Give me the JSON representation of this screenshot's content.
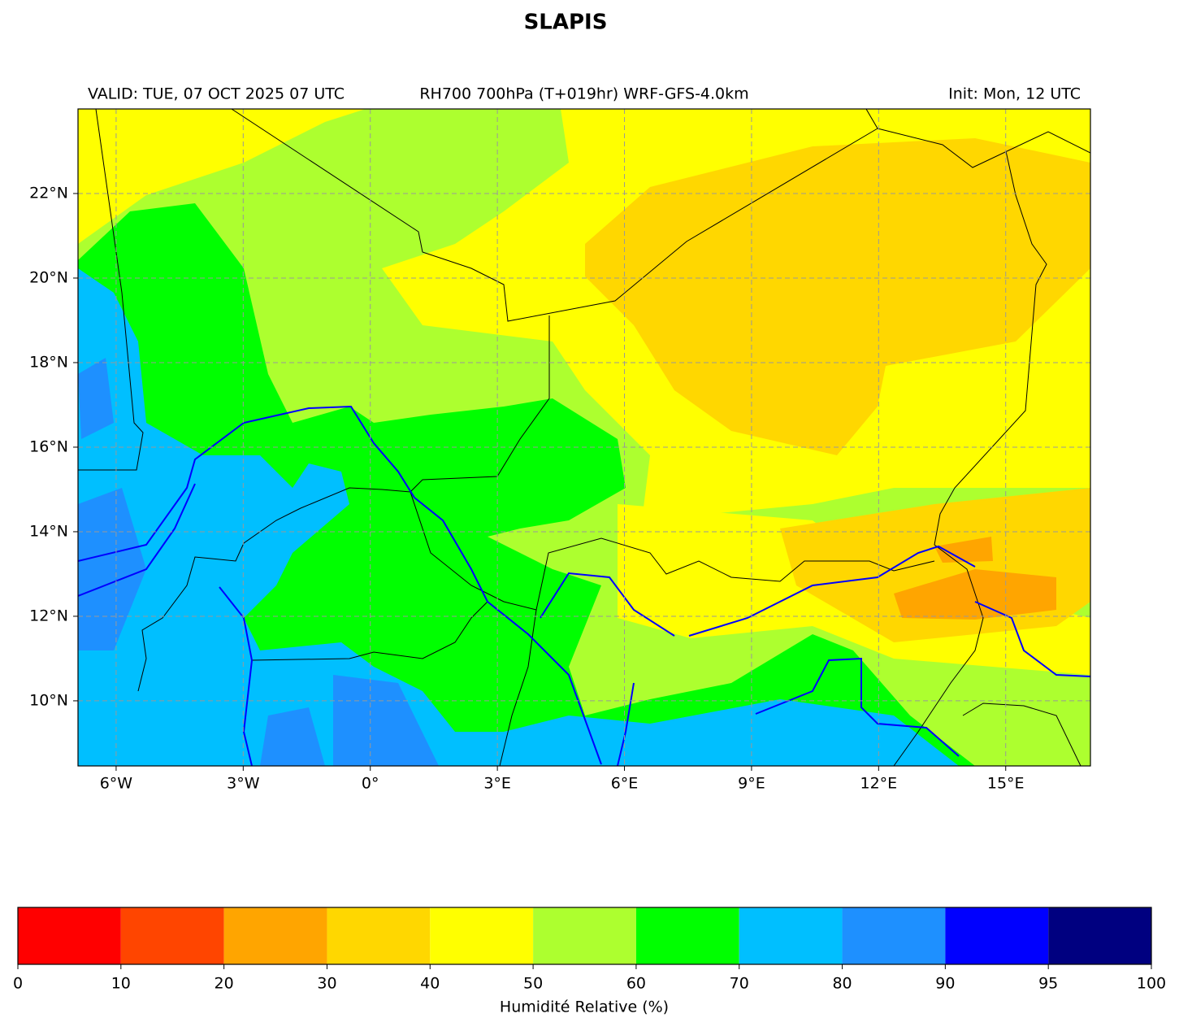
{
  "title": "SLAPIS",
  "header": {
    "valid": "VALID: TUE, 07 OCT 2025 07 UTC",
    "product": "RH700 700hPa (T+019hr) WRF-GFS-4.0km",
    "init": "Init: Mon, 12 UTC"
  },
  "map": {
    "xlim": [
      -6.9,
      17
    ],
    "ylim": [
      8.46,
      24
    ],
    "grid": true,
    "xticks": [
      {
        "value": -6,
        "label": "6°W"
      },
      {
        "value": -3,
        "label": "3°W"
      },
      {
        "value": 0,
        "label": "0°"
      },
      {
        "value": 3,
        "label": "3°E"
      },
      {
        "value": 6,
        "label": "6°E"
      },
      {
        "value": 9,
        "label": "9°E"
      },
      {
        "value": 12,
        "label": "12°E"
      },
      {
        "value": 15,
        "label": "15°E"
      }
    ],
    "yticks": [
      {
        "value": 10,
        "label": "10°N"
      },
      {
        "value": 12,
        "label": "12°N"
      },
      {
        "value": 14,
        "label": "14°N"
      },
      {
        "value": 16,
        "label": "16°N"
      },
      {
        "value": 18,
        "label": "18°N"
      },
      {
        "value": 20,
        "label": "20°N"
      },
      {
        "value": 22,
        "label": "22°N"
      }
    ]
  },
  "colorbar": {
    "bounds": [
      0,
      10,
      20,
      30,
      40,
      50,
      60,
      70,
      80,
      90,
      95,
      100
    ],
    "colors": [
      "#ff0000",
      "#ff4500",
      "#ffa500",
      "#ffd700",
      "#ffff00",
      "#adff2f",
      "#00ff00",
      "#00bfff",
      "#1e90ff",
      "#0000ff",
      "#000080"
    ],
    "label": "Humidité Relative (%)"
  }
}
